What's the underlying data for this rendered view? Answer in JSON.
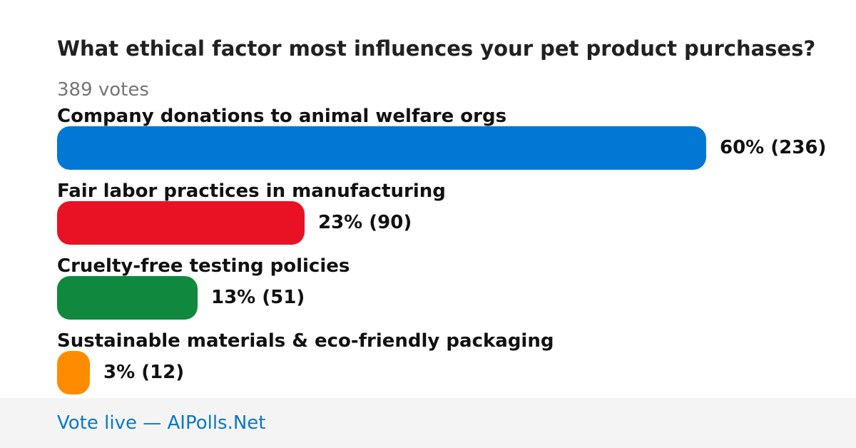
{
  "poll": {
    "question": "What ethical factor most influences your pet product purchases?",
    "votes_label": "389 votes"
  },
  "chart_data": {
    "type": "bar",
    "orientation": "horizontal",
    "total_votes": 389,
    "categories": [
      "Company donations to animal welfare orgs",
      "Fair labor practices in manufacturing",
      "Cruelty-free testing policies",
      "Sustainable materials & eco-friendly packaging"
    ],
    "values": [
      236,
      90,
      51,
      12
    ],
    "percents": [
      60,
      23,
      13,
      3
    ],
    "value_labels": [
      "60% (236)",
      "23% (90)",
      "13% (51)",
      "3% (12)"
    ],
    "colors": [
      "#0277d4",
      "#e81224",
      "#10893e",
      "#ff8c00"
    ]
  },
  "footer": {
    "link_text": "Vote live — AIPolls.Net"
  }
}
